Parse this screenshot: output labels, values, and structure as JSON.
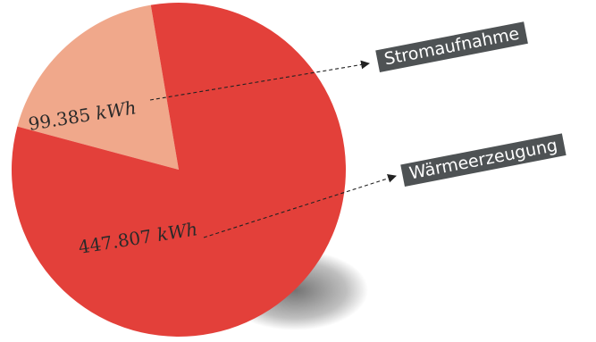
{
  "chart_data": {
    "type": "pie",
    "slices": [
      {
        "label": "Stromaufnahme",
        "value": 99385,
        "value_text": "99.385",
        "unit": "kWh",
        "color": "#f0a88b"
      },
      {
        "label": "Wärmeerzeugung",
        "value": 447807,
        "value_text": "447.807",
        "unit": "kWh",
        "color": "#e3403a"
      }
    ],
    "legend": "callout tags to the right, connected by dashed arrows"
  }
}
